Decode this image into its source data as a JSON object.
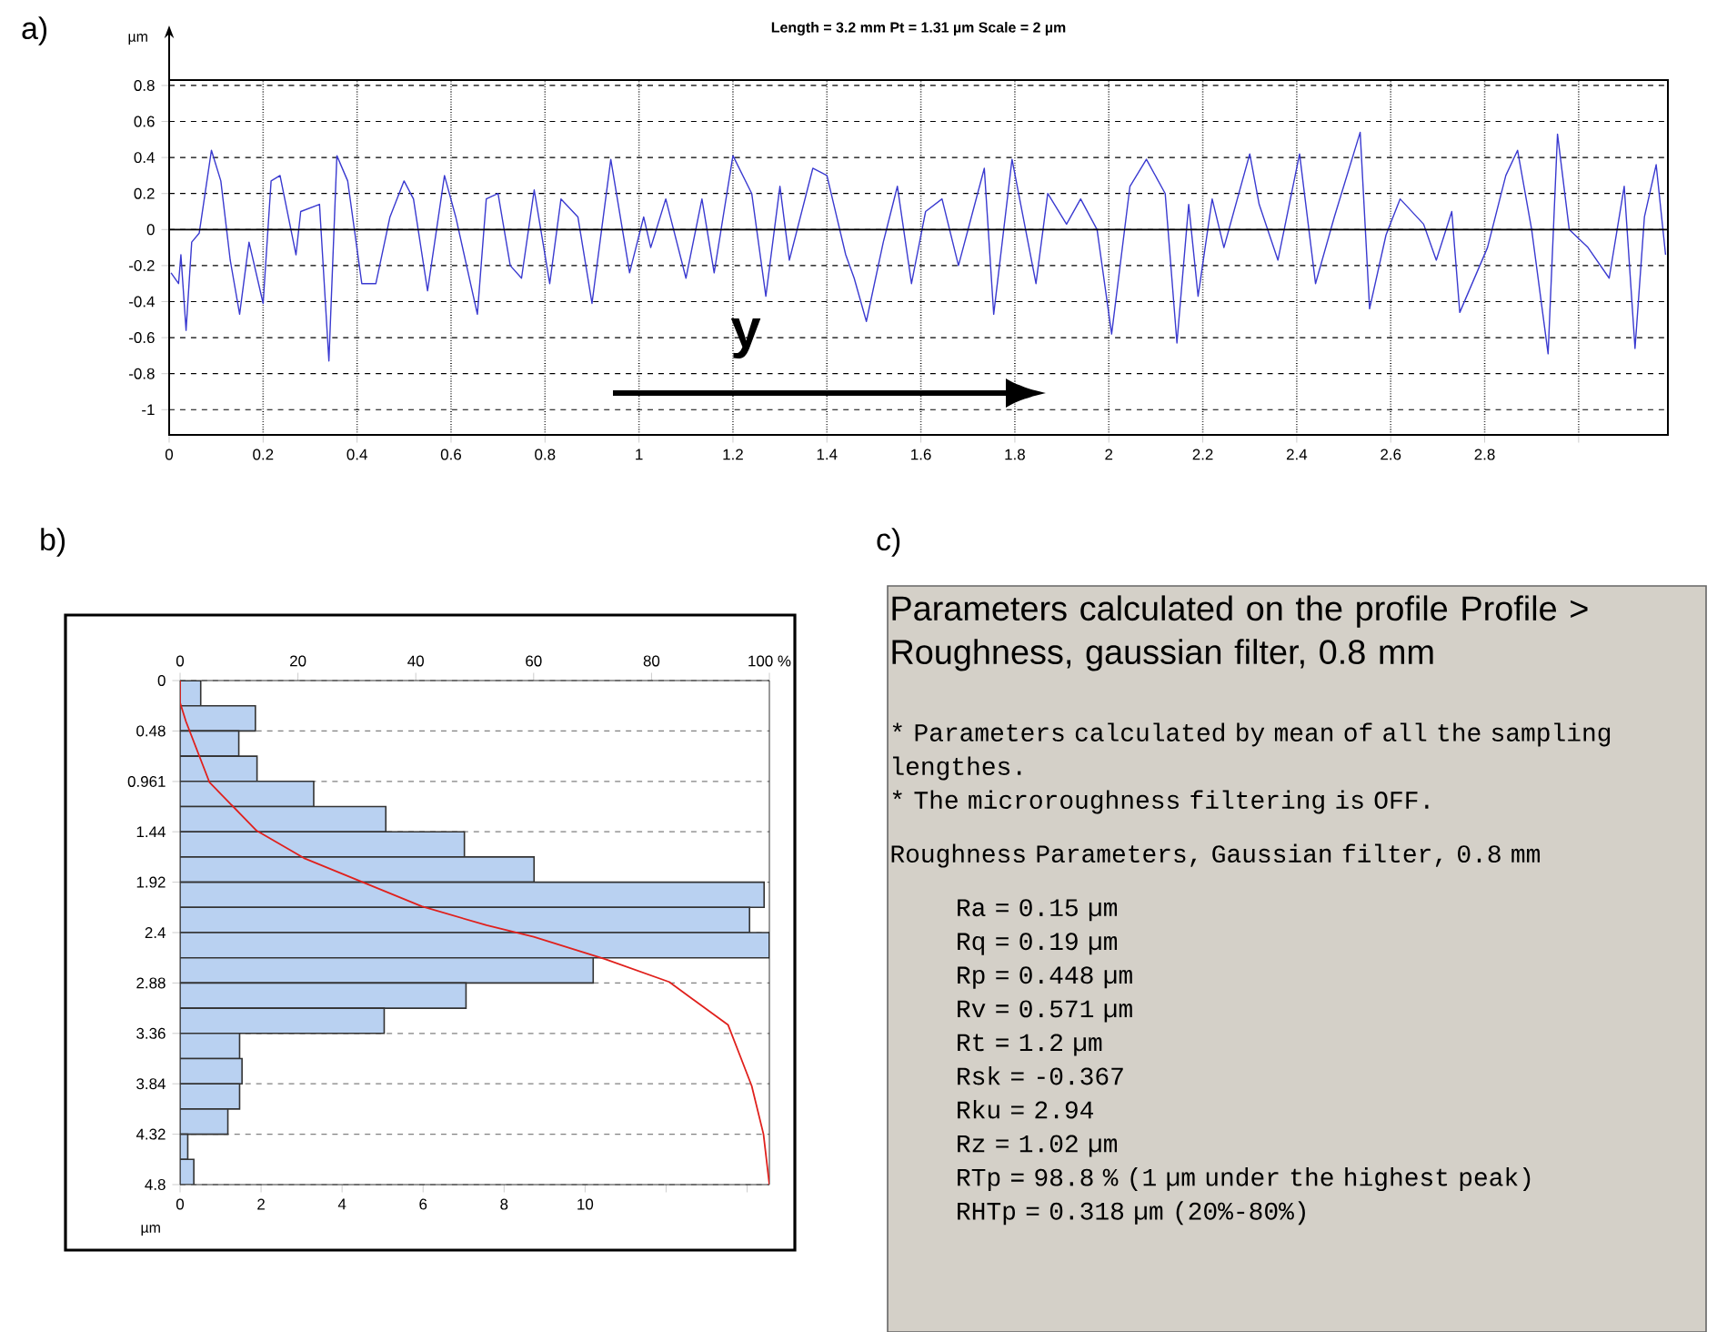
{
  "chart_data": [
    {
      "type": "line",
      "title": "Length = 3.2 mm Pt = 1.31 µm Scale = 2 µm",
      "ylabel": "µm",
      "annotations": [
        "a)",
        "y"
      ],
      "x": [
        0.004,
        0.02,
        0.025,
        0.036,
        0.048,
        0.064,
        0.09,
        0.11,
        0.13,
        0.15,
        0.17,
        0.2,
        0.217,
        0.236,
        0.27,
        0.28,
        0.32,
        0.34,
        0.357,
        0.38,
        0.41,
        0.44,
        0.47,
        0.5,
        0.52,
        0.55,
        0.586,
        0.61,
        0.656,
        0.675,
        0.7,
        0.726,
        0.75,
        0.777,
        0.81,
        0.834,
        0.87,
        0.9,
        0.94,
        0.98,
        1.01,
        1.025,
        1.057,
        1.1,
        1.134,
        1.16,
        1.2,
        1.24,
        1.27,
        1.3,
        1.32,
        1.37,
        1.4,
        1.44,
        1.458,
        1.484,
        1.52,
        1.55,
        1.58,
        1.61,
        1.645,
        1.68,
        1.735,
        1.755,
        1.794,
        1.845,
        1.87,
        1.91,
        1.94,
        1.975,
        2.006,
        2.045,
        2.08,
        2.12,
        2.145,
        2.17,
        2.19,
        2.22,
        2.245,
        2.3,
        2.32,
        2.36,
        2.406,
        2.44,
        2.48,
        2.535,
        2.555,
        2.59,
        2.62,
        2.67,
        2.697,
        2.73,
        2.747,
        2.806,
        2.845,
        2.87,
        2.9,
        2.935,
        2.955,
        2.98,
        3.02,
        3.065,
        3.097,
        3.12,
        3.14,
        3.165,
        3.185
      ],
      "series": [
        {
          "color": "#3a3ad0",
          "values": [
            -0.24,
            -0.3,
            -0.14,
            -0.56,
            -0.07,
            -0.02,
            0.44,
            0.27,
            -0.17,
            -0.47,
            -0.07,
            -0.41,
            0.27,
            0.3,
            -0.14,
            0.1,
            0.14,
            -0.73,
            0.41,
            0.27,
            -0.3,
            -0.3,
            0.07,
            0.27,
            0.17,
            -0.34,
            0.3,
            0.07,
            -0.47,
            0.17,
            0.2,
            -0.2,
            -0.27,
            0.22,
            -0.3,
            0.17,
            0.07,
            -0.41,
            0.39,
            -0.24,
            0.07,
            -0.1,
            0.17,
            -0.27,
            0.17,
            -0.24,
            0.41,
            0.2,
            -0.37,
            0.24,
            -0.17,
            0.34,
            0.3,
            -0.14,
            -0.27,
            -0.51,
            -0.07,
            0.24,
            -0.3,
            0.1,
            0.17,
            -0.2,
            0.34,
            -0.47,
            0.39,
            -0.3,
            0.2,
            0.03,
            0.17,
            0,
            -0.58,
            0.24,
            0.39,
            0.2,
            -0.63,
            0.14,
            -0.37,
            0.17,
            -0.1,
            0.42,
            0.14,
            -0.17,
            0.42,
            -0.3,
            0.07,
            0.54,
            -0.44,
            -0.03,
            0.17,
            0.03,
            -0.17,
            0.1,
            -0.46,
            -0.1,
            0.3,
            0.44,
            0,
            -0.69,
            0.53,
            0,
            -0.1,
            -0.27,
            0.24,
            -0.66,
            0.07,
            0.36,
            -0.14
          ]
        }
      ],
      "xlim": [
        0,
        3.19
      ],
      "ylim": [
        -1.14,
        0.83
      ],
      "xticks": [
        0,
        0.2,
        0.4,
        0.6,
        0.8,
        1,
        1.2,
        1.4,
        1.6,
        1.8,
        2,
        2.2,
        2.4,
        2.6,
        2.8,
        {
          "value": 3,
          "label": null
        }
      ],
      "yticks": [
        0.8,
        0.6,
        0.4,
        0.2,
        0,
        -0.2,
        -0.4,
        -0.6,
        -0.8,
        -1
      ],
      "grid": true,
      "ref_lines": [
        {
          "axis": "y",
          "value": 0
        }
      ]
    },
    {
      "type": "histogram",
      "orientation": "horizontal",
      "ylabel": "µm",
      "annotations": [
        "b)"
      ],
      "bins": [
        0,
        0.24,
        0.48,
        0.72,
        0.96,
        1.2,
        1.44,
        1.68,
        1.92,
        2.16,
        2.4,
        2.64,
        2.88,
        3.12,
        3.36,
        3.6,
        3.84,
        4.08,
        4.32,
        4.56,
        4.8
      ],
      "series": [
        {
          "type": "histogram",
          "color": "#b9d1f1",
          "values": [
            0.51,
            1.86,
            1.45,
            1.9,
            3.3,
            5.08,
            7.02,
            8.74,
            14.42,
            14.06,
            14.55,
            10.2,
            7.06,
            5.04,
            1.47,
            1.53,
            1.47,
            1.18,
            0.19,
            0.34
          ]
        },
        {
          "type": "line",
          "axis": "x2",
          "color": "#e0201c",
          "x": [
            0,
            0.21,
            0.39,
            0.68,
            0.97,
            1.2,
            1.43,
            1.69,
            1.92,
            2.15,
            2.33,
            2.44,
            2.65,
            2.87,
            3.28,
            3.57,
            3.86,
            4.32,
            4.8
          ],
          "values": [
            0,
            0,
            1,
            3,
            5,
            9,
            13,
            21,
            31,
            41,
            52,
            60,
            72,
            83,
            93,
            95,
            97,
            99,
            100
          ]
        }
      ],
      "xlim": [
        0,
        14.55
      ],
      "xticks": [
        0,
        2,
        4,
        6,
        8,
        10,
        {
          "value": 12,
          "label": null
        },
        {
          "value": 14,
          "label": null
        }
      ],
      "x2lim": [
        0,
        100
      ],
      "x2ticks": [
        0,
        20,
        40,
        60,
        80,
        {
          "value": 100,
          "label": "100 %"
        }
      ],
      "ylim": [
        4.8,
        0
      ],
      "yticks": [
        0,
        0.48,
        0.961,
        1.44,
        1.92,
        2.4,
        2.88,
        3.36,
        3.84,
        4.32,
        4.8
      ],
      "grid": "y"
    },
    {
      "type": "other",
      "title": "Parameters calculated on the profile Profile > Roughness, gaussian filter, 0.8 mm",
      "annotations": [
        "c)",
        "* Parameters calculated by mean of all the sampling lengthes.",
        "* The microroughness filtering is OFF.",
        "Roughness Parameters, Gaussian filter, 0.8 mm",
        "Ra = 0.15 µm",
        "Rq = 0.19 µm",
        "Rp = 0.448 µm",
        "Rv = 0.571 µm",
        "Rt = 1.2 µm",
        "Rsk = -0.367",
        "Rku = 2.94",
        "Rz = 1.02 µm",
        "RTp = 98.8 % (1 µm under the highest peak)",
        "RHTp = 0.318 µm (20%-80%)"
      ]
    }
  ]
}
